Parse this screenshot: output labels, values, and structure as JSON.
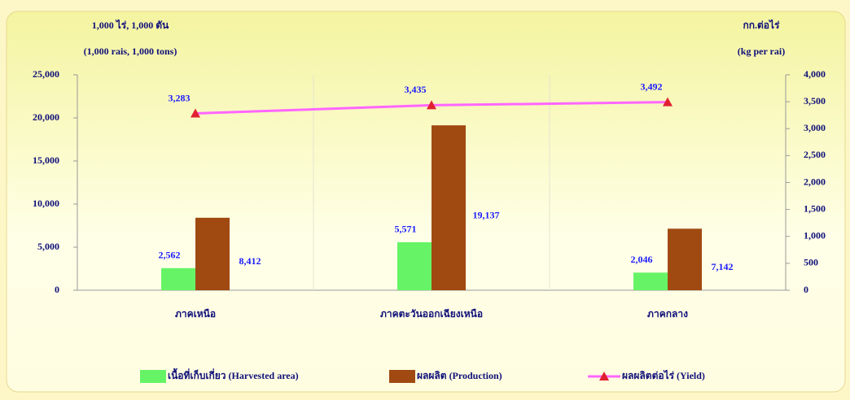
{
  "chart_data": {
    "type": "bar-line",
    "y_label": [
      "1,000 ไร่,  1,000 ตัน",
      "(1,000 rais,  1,000 tons)"
    ],
    "y2_label": [
      "กก.ต่อไร่",
      "(kg per rai)"
    ],
    "categories": [
      "ภาคเหนือ",
      "ภาคตะวันออกเฉียงเหนือ",
      "ภาคกลาง"
    ],
    "series": [
      {
        "name": "เนื้อที่เก็บเกี่ยว (Harvested area)",
        "color": "#66f466",
        "type": "bar",
        "values": [
          2562,
          5571,
          2046
        ],
        "value_labels": [
          "2,562",
          "5,571",
          "2,046"
        ]
      },
      {
        "name": "ผลผลิต  (Production)",
        "color": "#a04a12",
        "type": "bar",
        "values": [
          8412,
          19137,
          7142
        ],
        "value_labels": [
          "8,412",
          "19,137",
          "7,142"
        ]
      },
      {
        "name": "ผลผลิตต่อไร่  (Yield)",
        "color": "#ff66ff",
        "marker_color": "#e02030",
        "type": "line",
        "axis": "y2",
        "values": [
          3283,
          3435,
          3492
        ],
        "value_labels": [
          "3,283",
          "3,435",
          "3,492"
        ]
      }
    ],
    "ylim": [
      0,
      25000
    ],
    "yticks": [
      0,
      {
        "value": 5000,
        "label": "5,000"
      },
      {
        "value": 10000,
        "label": "10,000"
      },
      {
        "value": 15000,
        "label": "15,000"
      },
      {
        "value": 20000,
        "label": "20,000"
      },
      {
        "value": 25000,
        "label": "25,000"
      }
    ],
    "y2lim": [
      0,
      4000
    ],
    "y2ticks": [
      0,
      500,
      {
        "value": 1000,
        "label": "1,000"
      },
      {
        "value": 1500,
        "label": "1,500"
      },
      {
        "value": 2000,
        "label": "2,000"
      },
      {
        "value": 2500,
        "label": "2,500"
      },
      {
        "value": 3000,
        "label": "3,000"
      },
      {
        "value": 3500,
        "label": "3,500"
      },
      {
        "value": 4000,
        "label": "4,000"
      }
    ],
    "grid": false
  }
}
